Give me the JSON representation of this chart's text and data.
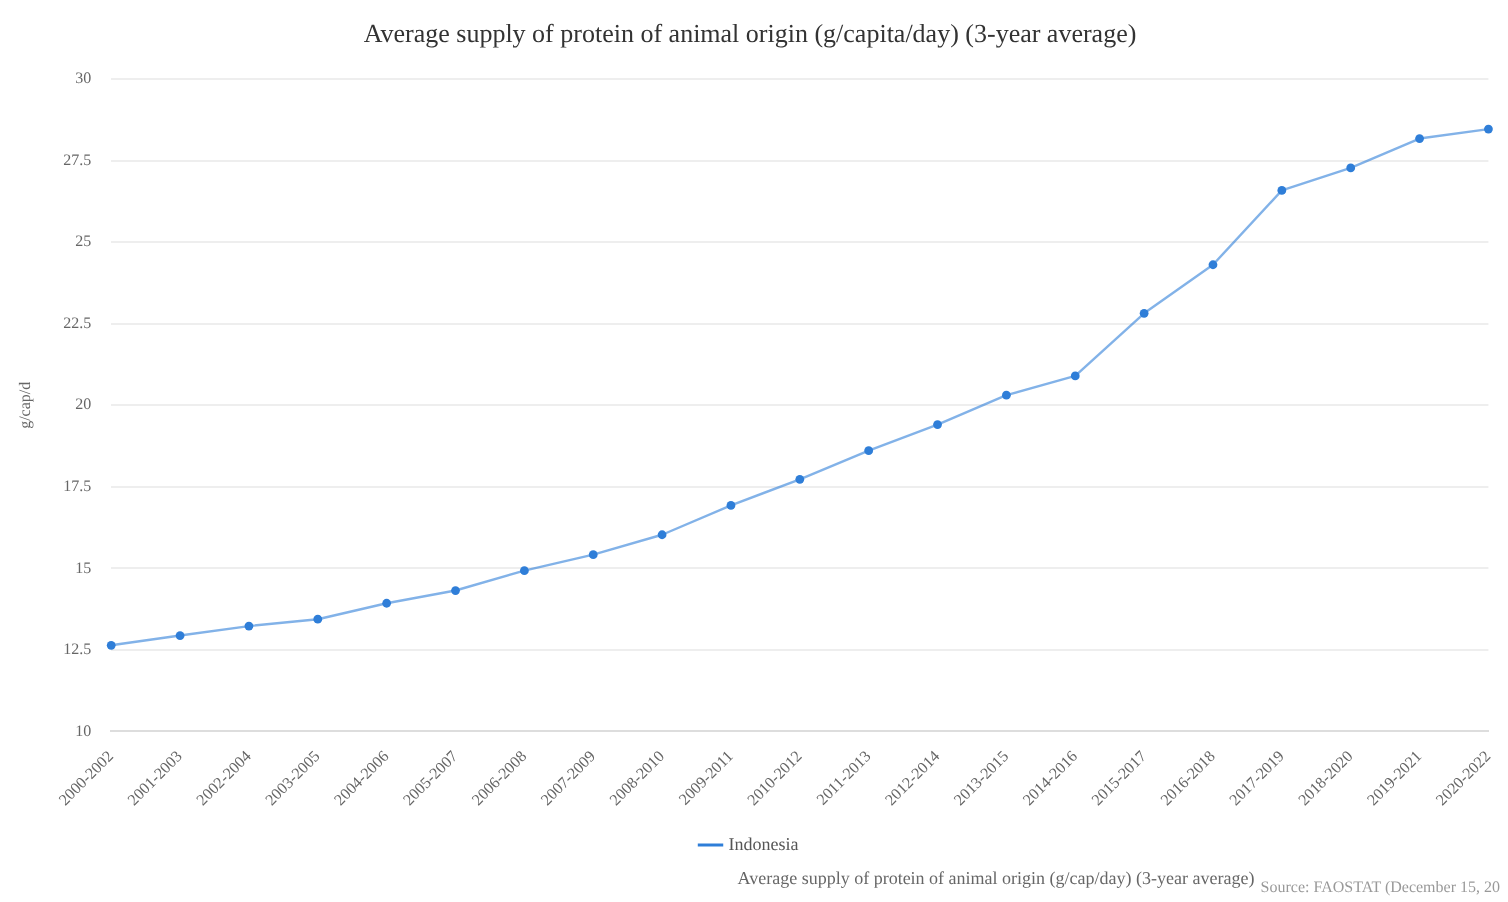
{
  "chart_data": {
    "type": "line",
    "title": "Average supply of protein of animal origin (g/capita/day) (3-year average)",
    "ylabel": "g/cap/d",
    "categories": [
      "2000-2002",
      "2001-2003",
      "2002-2004",
      "2003-2005",
      "2004-2006",
      "2005-2007",
      "2006-2008",
      "2007-2009",
      "2008-2010",
      "2009-2011",
      "2010-2012",
      "2011-2013",
      "2012-2014",
      "2013-2015",
      "2014-2016",
      "2015-2017",
      "2016-2018",
      "2017-2019",
      "2018-2020",
      "2019-2021",
      "2020-2022"
    ],
    "series": [
      {
        "name": "Indonesia",
        "color": "#2f7ed8",
        "values": [
          12.64,
          12.94,
          13.23,
          13.44,
          13.93,
          14.32,
          14.93,
          15.42,
          16.03,
          16.93,
          17.73,
          18.61,
          19.41,
          20.31,
          20.9,
          22.82,
          24.31,
          26.59,
          27.28,
          28.18,
          28.47
        ]
      }
    ],
    "ylim": [
      10,
      30
    ],
    "yticks": [
      10,
      12.5,
      15,
      17.5,
      20,
      22.5,
      25,
      27.5,
      30
    ],
    "grid": "y",
    "legend": "bottom",
    "marker": "circle",
    "line_style": "solid",
    "annotations": [
      "Average supply of protein of animal origin (g/cap/day) (3-year average)",
      "Source: FAOSTAT (December 15, 20"
    ]
  }
}
